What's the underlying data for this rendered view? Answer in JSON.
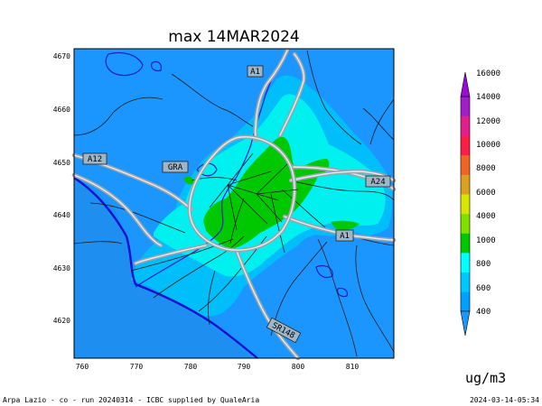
{
  "title": "max 14MAR2024",
  "map": {
    "x_ticks": [
      "760",
      "770",
      "780",
      "790",
      "800",
      "810"
    ],
    "y_ticks": [
      "4670",
      "4660",
      "4650",
      "4640",
      "4630",
      "4620"
    ],
    "road_labels": {
      "a1_north": "A1",
      "a12": "A12",
      "gra": "GRA",
      "a24": "A24",
      "a1_south": "A1",
      "sr148": "SR148"
    }
  },
  "colorbar": {
    "levels": [
      "400",
      "600",
      "800",
      "1000",
      "4000",
      "6000",
      "8000",
      "10000",
      "12000",
      "14000",
      "16000"
    ],
    "colors": [
      "#00a0ff",
      "#00c8ff",
      "#00ffff",
      "#00c800",
      "#7fdf00",
      "#d7e600",
      "#dca020",
      "#f06428",
      "#fa1e46",
      "#e11e8c",
      "#a01ec8"
    ],
    "under_color": "#1e96ff",
    "over_color": "#9b0bd6"
  },
  "unit": "ug/m3",
  "footer": {
    "left": "Arpa Lazio - co - run 20240314 - ICBC supplied by QualeAria",
    "right": "2024-03-14-05:34"
  }
}
